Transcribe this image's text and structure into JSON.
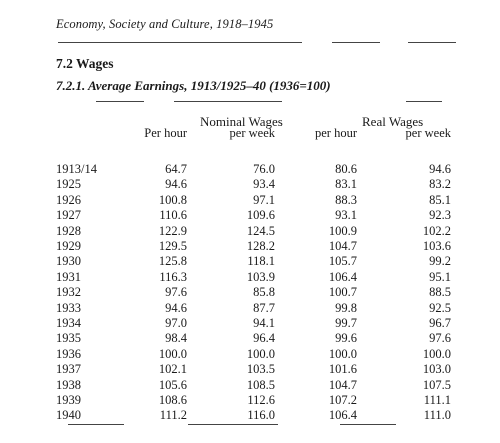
{
  "running_head": "Economy, Society and Culture, 1918–1945",
  "section_title": "7.2  Wages",
  "subsection_title": "7.2.1.  Average Earnings, 1913/1925–40 (1936=100)",
  "table": {
    "groups": [
      "Nominal Wages",
      "Real Wages"
    ],
    "columns": [
      "Per hour",
      "per week",
      "per hour",
      "per week"
    ],
    "rows": [
      {
        "year": "1913/14",
        "values": [
          "64.7",
          "76.0",
          "80.6",
          "94.6"
        ]
      },
      {
        "year": "1925",
        "values": [
          "94.6",
          "93.4",
          "83.1",
          "83.2"
        ]
      },
      {
        "year": "1926",
        "values": [
          "100.8",
          "97.1",
          "88.3",
          "85.1"
        ]
      },
      {
        "year": "1927",
        "values": [
          "110.6",
          "109.6",
          "93.1",
          "92.3"
        ]
      },
      {
        "year": "1928",
        "values": [
          "122.9",
          "124.5",
          "100.9",
          "102.2"
        ]
      },
      {
        "year": "1929",
        "values": [
          "129.5",
          "128.2",
          "104.7",
          "103.6"
        ]
      },
      {
        "year": "1930",
        "values": [
          "125.8",
          "118.1",
          "105.7",
          "99.2"
        ]
      },
      {
        "year": "1931",
        "values": [
          "116.3",
          "103.9",
          "106.4",
          "95.1"
        ]
      },
      {
        "year": "1932",
        "values": [
          "97.6",
          "85.8",
          "100.7",
          "88.5"
        ]
      },
      {
        "year": "1933",
        "values": [
          "94.6",
          "87.7",
          "99.8",
          "92.5"
        ]
      },
      {
        "year": "1934",
        "values": [
          "97.0",
          "94.1",
          "99.7",
          "96.7"
        ]
      },
      {
        "year": "1935",
        "values": [
          "98.4",
          "96.4",
          "99.6",
          "97.6"
        ]
      },
      {
        "year": "1936",
        "values": [
          "100.0",
          "100.0",
          "100.0",
          "100.0"
        ]
      },
      {
        "year": "1937",
        "values": [
          "102.1",
          "103.5",
          "101.6",
          "103.0"
        ]
      },
      {
        "year": "1938",
        "values": [
          "105.6",
          "108.5",
          "104.7",
          "107.5"
        ]
      },
      {
        "year": "1939",
        "values": [
          "108.6",
          "112.6",
          "107.2",
          "111.1"
        ]
      },
      {
        "year": "1940",
        "values": [
          "111.2",
          "116.0",
          "106.4",
          "111.0"
        ]
      }
    ]
  }
}
